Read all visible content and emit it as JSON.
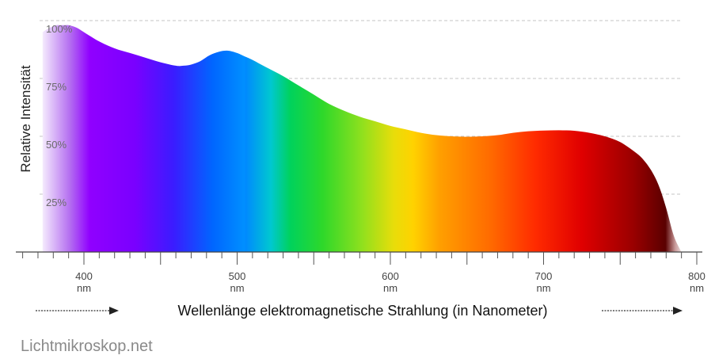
{
  "chart_data": {
    "type": "area",
    "title": "",
    "xlabel": "Wellenlänge elektromagnetische Strahlung (in Nanometer)",
    "ylabel": "Relative Intensität",
    "xlim": [
      360,
      800
    ],
    "ylim": [
      0,
      100
    ],
    "x_ticks": [
      {
        "value": 400,
        "label": "400",
        "unit": "nm"
      },
      {
        "value": 500,
        "label": "500",
        "unit": "nm"
      },
      {
        "value": 600,
        "label": "600",
        "unit": "nm"
      },
      {
        "value": 700,
        "label": "700",
        "unit": "nm"
      },
      {
        "value": 800,
        "label": "800",
        "unit": "nm"
      }
    ],
    "y_ticks": [
      {
        "value": 25,
        "label": "25%"
      },
      {
        "value": 50,
        "label": "50%"
      },
      {
        "value": 75,
        "label": "75%"
      },
      {
        "value": 100,
        "label": "100%"
      }
    ],
    "grid": true,
    "fill": "visible spectrum gradient",
    "series": [
      {
        "x": [
          373,
          378,
          382,
          386,
          390,
          395,
          400,
          410,
          420,
          430,
          440,
          450,
          460,
          465,
          470,
          476,
          482,
          488,
          494,
          500,
          505,
          510,
          520,
          530,
          540,
          550,
          560,
          570,
          580,
          590,
          600,
          610,
          620,
          630,
          640,
          650,
          660,
          670,
          680,
          690,
          700,
          710,
          720,
          730,
          740,
          750,
          760,
          765,
          770,
          775,
          780,
          785,
          790
        ],
        "values": [
          95,
          97,
          98,
          98,
          98,
          97,
          95,
          91,
          88,
          86,
          84,
          82,
          80.5,
          80.5,
          81,
          82.5,
          85,
          86.5,
          87,
          86,
          84.5,
          83,
          79.5,
          76,
          72,
          68,
          64,
          61,
          58.5,
          56.5,
          54.5,
          53,
          51.5,
          50.5,
          50,
          49.8,
          50,
          50.5,
          51.5,
          52.2,
          52.5,
          52.6,
          52.4,
          51.5,
          50,
          47.5,
          43,
          40,
          35.5,
          29,
          19,
          7,
          0
        ]
      }
    ]
  },
  "watermark": "Lichtmikroskop.net"
}
